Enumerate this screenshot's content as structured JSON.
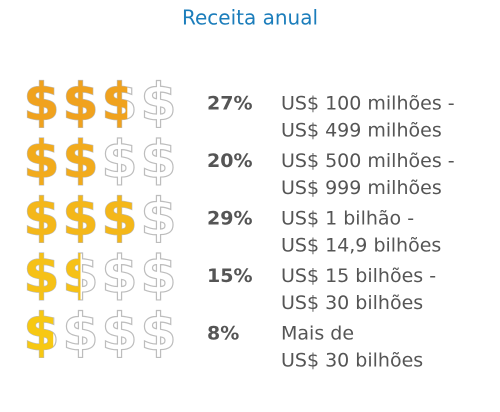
{
  "chart_data": {
    "type": "pictogram",
    "title": "Receita anual",
    "categories": [
      [
        "US$ 100 milhões -",
        "US$ 499 milhões"
      ],
      [
        "US$ 500 milhões -",
        "US$ 999 milhões"
      ],
      [
        "US$ 1 bilhão -",
        "US$ 14,9 bilhões"
      ],
      [
        "US$ 15 bilhões -",
        "US$ 30 bilhões"
      ],
      [
        "Mais de",
        "US$ 30 bilhões"
      ]
    ],
    "values": [
      27,
      20,
      29,
      15,
      8
    ],
    "value_labels": [
      "27%",
      "20%",
      "29%",
      "15%",
      "8%"
    ],
    "colors": [
      "#f0a21e",
      "#f2ab1c",
      "#f4b719",
      "#f6c116",
      "#f7c812"
    ],
    "empty_color": "#bdbdbd"
  }
}
